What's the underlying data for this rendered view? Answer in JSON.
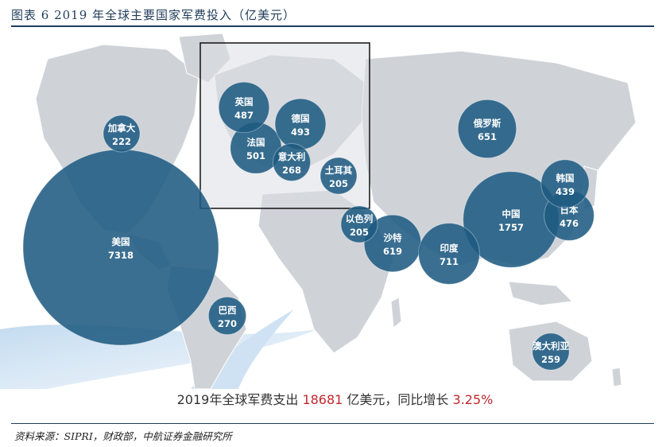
{
  "title": "图表 6 2019 年全球主要国家军费投入（亿美元）",
  "summary": {
    "prefix": "2019年全球军费支出 ",
    "total": "18681",
    "middle": " 亿美元，同比增长 ",
    "growth": "3.25%"
  },
  "source": "资料来源：SIPRI，财政部，中航证券金融研究所",
  "colors": {
    "bubble": "#1f5b82",
    "land": "#cfd3d8",
    "accent": "#c0282d",
    "rule": "#1f3c5a"
  },
  "chart_data": {
    "type": "bubble-map",
    "unit": "亿美元",
    "points": [
      {
        "name": "美国",
        "value": 7318
      },
      {
        "name": "中国",
        "value": 1757
      },
      {
        "name": "沙特",
        "value": 619
      },
      {
        "name": "印度",
        "value": 711
      },
      {
        "name": "俄罗斯",
        "value": 651
      },
      {
        "name": "法国",
        "value": 501
      },
      {
        "name": "德国",
        "value": 493
      },
      {
        "name": "英国",
        "value": 487
      },
      {
        "name": "日本",
        "value": 476
      },
      {
        "name": "韩国",
        "value": 439
      },
      {
        "name": "巴西",
        "value": 270
      },
      {
        "name": "意大利",
        "value": 268
      },
      {
        "name": "澳大利亚",
        "value": 259
      },
      {
        "name": "加拿大",
        "value": 222
      },
      {
        "name": "以色列",
        "value": 205
      },
      {
        "name": "土耳其",
        "value": 205
      }
    ]
  }
}
